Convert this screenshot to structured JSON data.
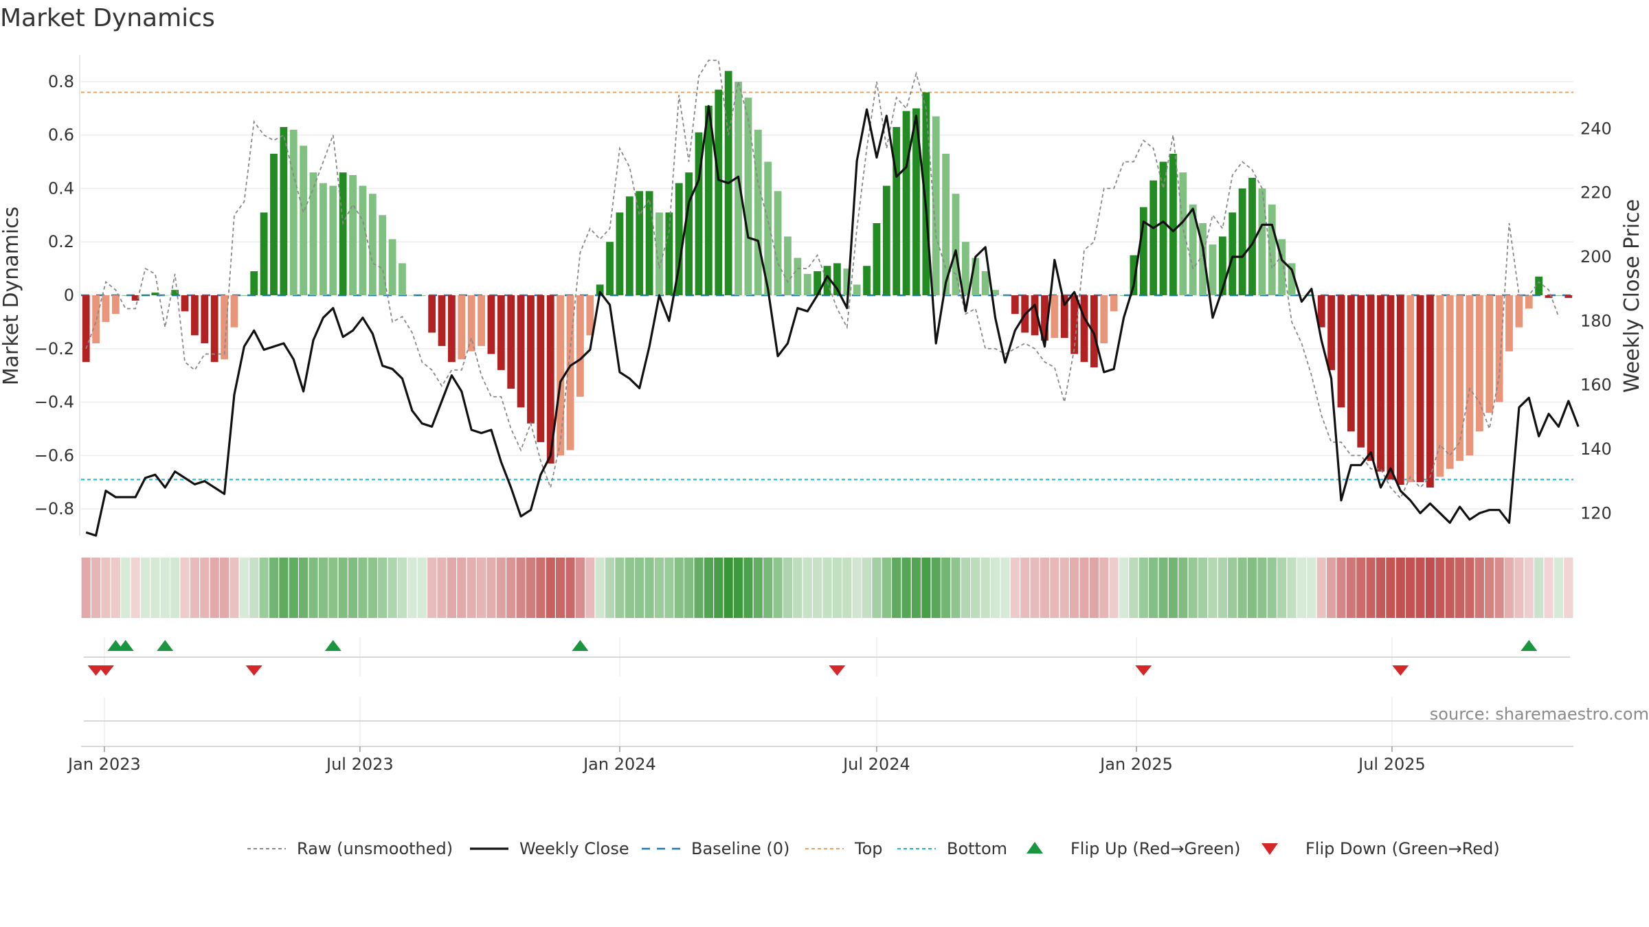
{
  "chart_data": {
    "type": "bar",
    "title": "Market Dynamics",
    "ylabel": "Market Dynamics",
    "y2label": "Weekly Close Price",
    "ylim": [
      -0.9,
      0.9
    ],
    "y2lim": [
      113,
      263
    ],
    "yticks": [
      -0.8,
      -0.6,
      -0.4,
      -0.2,
      0,
      0.2,
      0.4,
      0.6,
      0.8
    ],
    "ytick_labels": [
      "−0.8",
      "−0.6",
      "−0.4",
      "−0.2",
      "0",
      "0.2",
      "0.4",
      "0.6",
      "0.8"
    ],
    "y2ticks": [
      120,
      140,
      160,
      180,
      200,
      220,
      240
    ],
    "y2tick_labels": [
      "120",
      "140",
      "160",
      "180",
      "200",
      "220",
      "240"
    ],
    "start_date": "2022-12-19",
    "xticks": [
      "2023-01-01",
      "2023-07-01",
      "2024-01-01",
      "2024-07-01",
      "2025-01-01",
      "2025-07-01"
    ],
    "xtick_labels": [
      "Jan 2023",
      "Jul 2023",
      "Jan 2024",
      "Jul 2024",
      "Jan 2025",
      "Jul 2025"
    ],
    "top_level": 0.76,
    "bottom_level": -0.69,
    "grid": true,
    "legend_position": "bottom-center",
    "colors": {
      "strong_green": "#228B22",
      "light_green": "#80C080",
      "strong_red": "#B22222",
      "light_red": "#E8957A",
      "close": "#111111",
      "raw": "#888888",
      "baseline": "#1f77b4",
      "top": "#e8a060",
      "bottom": "#20b0d0",
      "flip_up": "#1a9641",
      "flip_down": "#d62728"
    },
    "dynamics": [
      -0.25,
      -0.18,
      -0.1,
      -0.07,
      0,
      -0.02,
      0,
      0.01,
      0,
      0.02,
      -0.06,
      -0.15,
      -0.18,
      -0.25,
      -0.24,
      -0.12,
      0,
      0.09,
      0.31,
      0.53,
      0.63,
      0.62,
      0.56,
      0.46,
      0.42,
      0.41,
      0.46,
      0.45,
      0.41,
      0.38,
      0.3,
      0.21,
      0.12,
      0,
      0,
      -0.14,
      -0.19,
      -0.25,
      -0.24,
      -0.21,
      -0.19,
      -0.22,
      -0.28,
      -0.35,
      -0.42,
      -0.48,
      -0.55,
      -0.63,
      -0.6,
      -0.58,
      -0.38,
      -0.15,
      0.04,
      0.2,
      0.31,
      0.37,
      0.39,
      0.39,
      0.31,
      0.31,
      0.42,
      0.46,
      0.61,
      0.71,
      0.77,
      0.84,
      0.8,
      0.74,
      0.62,
      0.5,
      0.39,
      0.22,
      0.14,
      0.08,
      0.09,
      0.11,
      0.12,
      0.1,
      0.04,
      0.11,
      0.27,
      0.41,
      0.63,
      0.69,
      0.7,
      0.76,
      0.67,
      0.53,
      0.38,
      0.2,
      0.14,
      0.09,
      0.02,
      0,
      -0.07,
      -0.14,
      -0.15,
      -0.17,
      -0.16,
      -0.16,
      -0.22,
      -0.25,
      -0.27,
      -0.18,
      -0.06,
      0,
      0.15,
      0.33,
      0.43,
      0.5,
      0.53,
      0.46,
      0.34,
      0.27,
      0.19,
      0.22,
      0.31,
      0.4,
      0.44,
      0.4,
      0.34,
      0.21,
      0.12,
      0,
      0,
      -0.12,
      -0.28,
      -0.42,
      -0.51,
      -0.57,
      -0.62,
      -0.66,
      -0.69,
      -0.71,
      -0.7,
      -0.7,
      -0.72,
      -0.68,
      -0.65,
      -0.62,
      -0.6,
      -0.51,
      -0.44,
      -0.4,
      -0.21,
      -0.12,
      -0.05,
      0.07,
      -0.01,
      0,
      -0.01
    ],
    "close": [
      114,
      113,
      127,
      125,
      125,
      125,
      131,
      132,
      128,
      133,
      131,
      129,
      130,
      128,
      126,
      157,
      172,
      177,
      171,
      172,
      173,
      168,
      158,
      174,
      181,
      184,
      175,
      177,
      181,
      176,
      166,
      165,
      162,
      152,
      148,
      147,
      155,
      163,
      158,
      146,
      145,
      146,
      136,
      128,
      119,
      121,
      132,
      138,
      161,
      166,
      168,
      171,
      189,
      185,
      164,
      162,
      159,
      172,
      188,
      180,
      197,
      217,
      224,
      247,
      224,
      223,
      225,
      206,
      205,
      190,
      169,
      173,
      184,
      183,
      188,
      194,
      190,
      184,
      230,
      246,
      231,
      244,
      225,
      228,
      244,
      215,
      173,
      192,
      202,
      183,
      200,
      203,
      181,
      167,
      177,
      182,
      185,
      172,
      199,
      185,
      189,
      181,
      176,
      164,
      165,
      181,
      191,
      211,
      209,
      211,
      208,
      211,
      215,
      203,
      181,
      190,
      200,
      200,
      204,
      210,
      210,
      199,
      196,
      186,
      190,
      174,
      162,
      124,
      135,
      135,
      139,
      128,
      134,
      127,
      124,
      120,
      123,
      120,
      117,
      122,
      118,
      120,
      121,
      121,
      117,
      153,
      156,
      144,
      151,
      147,
      155,
      147
    ],
    "raw": [
      -0.2,
      -0.1,
      0.05,
      0.02,
      -0.05,
      -0.05,
      0.1,
      0.08,
      -0.12,
      0.08,
      -0.25,
      -0.28,
      -0.22,
      -0.22,
      -0.22,
      0.3,
      0.35,
      0.65,
      0.6,
      0.58,
      0.6,
      0.45,
      0.31,
      0.4,
      0.5,
      0.6,
      0.27,
      0.34,
      0.28,
      0.12,
      0.1,
      -0.1,
      -0.08,
      -0.14,
      -0.25,
      -0.28,
      -0.34,
      -0.28,
      -0.28,
      -0.16,
      -0.3,
      -0.38,
      -0.38,
      -0.5,
      -0.58,
      -0.48,
      -0.62,
      -0.72,
      -0.55,
      -0.2,
      0.16,
      0.25,
      0.21,
      0.25,
      0.55,
      0.48,
      0.3,
      0.36,
      0.1,
      0.24,
      0.75,
      0.5,
      0.82,
      0.88,
      0.88,
      0.6,
      0.8,
      0.66,
      0.42,
      0.28,
      0.12,
      0.05,
      0.1,
      0.1,
      0.15,
      0.05,
      -0.05,
      -0.12,
      0.25,
      0.55,
      0.8,
      0.55,
      0.74,
      0.7,
      0.83,
      0.7,
      0.22,
      0.1,
      0.08,
      -0.07,
      -0.05,
      -0.2,
      -0.2,
      -0.22,
      -0.2,
      -0.18,
      -0.2,
      -0.25,
      -0.27,
      -0.4,
      -0.2,
      0.17,
      0.2,
      0.4,
      0.4,
      0.5,
      0.5,
      0.58,
      0.55,
      0.4,
      0.6,
      0.25,
      0.1,
      0.15,
      0.3,
      0.25,
      0.45,
      0.5,
      0.47,
      0.4,
      0.1,
      0.15,
      -0.1,
      -0.18,
      -0.3,
      -0.45,
      -0.55,
      -0.55,
      -0.6,
      -0.6,
      -0.65,
      -0.65,
      -0.72,
      -0.76,
      -0.68,
      -0.72,
      -0.68,
      -0.56,
      -0.6,
      -0.55,
      -0.35,
      -0.4,
      -0.5,
      -0.3,
      0.27,
      0,
      0,
      0.05,
      0.02,
      -0.08
    ],
    "flip_up_weeks": [
      3,
      4,
      8,
      25,
      50,
      146
    ],
    "flip_down_weeks": [
      1,
      2,
      17,
      76,
      107,
      133
    ],
    "legend": [
      {
        "label": "Raw (unsmoothed)",
        "style": "dotted-gray"
      },
      {
        "label": "Weekly Close",
        "style": "solid-black"
      },
      {
        "label": "Baseline (0)",
        "style": "dashed-blue"
      },
      {
        "label": "Top",
        "style": "dotted-orange"
      },
      {
        "label": "Bottom",
        "style": "dotted-cyan"
      },
      {
        "label": "Flip Up (Red→Green)",
        "style": "triangle-up-green"
      },
      {
        "label": "Flip Down (Green→Red)",
        "style": "triangle-down-red"
      }
    ],
    "source": "source: sharemaestro.com"
  }
}
